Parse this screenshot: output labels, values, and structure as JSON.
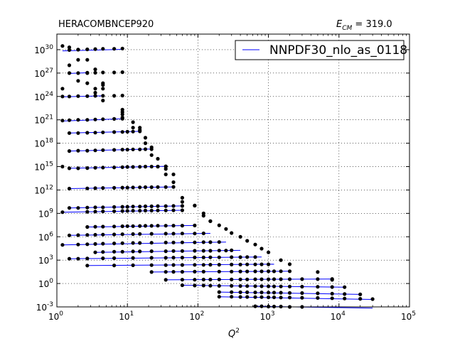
{
  "chart_data": {
    "type": "scatter",
    "title": "HERACOMBNCEP920",
    "annotation": {
      "symbol": "E",
      "subscript": "CM",
      "value": " = 319.0"
    },
    "xlabel": "Q",
    "xlabel_superscript": "2",
    "ylabel": "",
    "xscale": "log",
    "yscale": "log",
    "xlim": [
      1,
      100000
    ],
    "ylim": [
      0.001,
      1e+32
    ],
    "x_ticks": [
      {
        "base": "10",
        "exp": "0",
        "value": 1
      },
      {
        "base": "10",
        "exp": "1",
        "value": 10
      },
      {
        "base": "10",
        "exp": "2",
        "value": 100
      },
      {
        "base": "10",
        "exp": "3",
        "value": 1000
      },
      {
        "base": "10",
        "exp": "4",
        "value": 10000
      },
      {
        "base": "10",
        "exp": "5",
        "value": 100000
      }
    ],
    "y_ticks": [
      {
        "base": "10",
        "exp": "-3",
        "value": 0.001
      },
      {
        "base": "10",
        "exp": "0",
        "value": 1
      },
      {
        "base": "10",
        "exp": "3",
        "value": 1000
      },
      {
        "base": "10",
        "exp": "6",
        "value": 1000000
      },
      {
        "base": "10",
        "exp": "9",
        "value": 1000000000.0
      },
      {
        "base": "10",
        "exp": "12",
        "value": 1000000000000.0
      },
      {
        "base": "10",
        "exp": "15",
        "value": 1000000000000000.0
      },
      {
        "base": "10",
        "exp": "18",
        "value": 1e+18
      },
      {
        "base": "10",
        "exp": "21",
        "value": 1e+21
      },
      {
        "base": "10",
        "exp": "24",
        "value": 1e+24
      },
      {
        "base": "10",
        "exp": "27",
        "value": 1e+27
      },
      {
        "base": "10",
        "exp": "30",
        "value": 1e+30
      }
    ],
    "grid": true,
    "legend": {
      "placement": "top-right",
      "entries": [
        {
          "name": "NNPDF30_nlo_as_0118",
          "color": "#0000ff"
        }
      ]
    },
    "theory_color": "#0000ff",
    "data_color": "#000000",
    "series": [
      {
        "x": [
          1.5,
          2.0,
          2.7,
          3.5,
          4.5,
          6.5,
          8.5
        ],
        "y": [
          9e+29,
          1e+30,
          1.1e+30,
          1.2e+30,
          1.3e+30,
          1.3e+30,
          1.4e+30
        ],
        "theory": [
          [
            1.2,
            7e+29
          ],
          [
            8.5,
            1.1e+30
          ]
        ]
      },
      {
        "x": [
          1.5,
          2.0,
          2.7,
          3.5,
          4.5,
          6.5,
          8.5
        ],
        "y": [
          1e+27,
          1e+27,
          1.1e+27,
          1.1e+27,
          1.2e+27,
          1.2e+27,
          1.3e+27
        ],
        "theory": [
          [
            1.5,
            9e+26
          ],
          [
            2.7,
            1.1e+27
          ]
        ]
      },
      {
        "x": [
          1.2,
          1.5,
          2.0,
          2.7,
          3.5,
          4.5,
          6.5,
          8.5
        ],
        "y": [
          1e+24,
          1e+24,
          1.1e+24,
          1.1e+24,
          1.2e+24,
          1.2e+24,
          1.2e+24,
          1.3e+24
        ],
        "theory": [
          [
            1.2,
            9e+23
          ],
          [
            4.5,
            1.2e+24
          ]
        ]
      },
      {
        "x": [
          1.2,
          1.5,
          2.0,
          2.7,
          3.5,
          4.5,
          6.5,
          8.5
        ],
        "y": [
          8e+20,
          9e+20,
          1e+21,
          1e+21,
          1.1e+21,
          1.2e+21,
          1.3e+21,
          1.4e+21
        ],
        "theory": [
          [
            1.2,
            7e+20
          ],
          [
            8.5,
            1.4e+21
          ]
        ]
      },
      {
        "x": [
          1.5,
          2.0,
          2.7,
          3.5,
          4.5,
          6.5,
          8.5,
          10.0,
          12.0,
          15.0
        ],
        "y": [
          2e+19,
          2e+19,
          2.2e+19,
          2.3e+19,
          2.5e+19,
          2.7e+19,
          2.8e+19,
          3e+19,
          3.1e+19,
          3.3e+19
        ],
        "theory": [
          [
            1.5,
            2e+19
          ],
          [
            15,
            3.3e+19
          ]
        ]
      },
      {
        "x": [
          1.5,
          2.0,
          2.7,
          3.5,
          4.5,
          6.5,
          8.5,
          10.0,
          12.0,
          15.0,
          18.0,
          22.0
        ],
        "y": [
          1e+17,
          1.1e+17,
          1.1e+17,
          1.2e+17,
          1.3e+17,
          1.4e+17,
          1.5e+17,
          1.5e+17,
          1.6e+17,
          1.6e+17,
          1.7e+17,
          1.7e+17
        ],
        "theory": [
          [
            1.5,
            1e+17
          ],
          [
            22,
            1.8e+17
          ]
        ]
      },
      {
        "x": [
          1.5,
          2.0,
          2.7,
          3.5,
          4.5,
          6.5,
          8.5,
          10.0,
          12.0,
          15.0,
          18.0,
          22.0,
          27.0,
          35.0
        ],
        "y": [
          600000000000000.0,
          600000000000000.0,
          650000000000000.0,
          700000000000000.0,
          750000000000000.0,
          800000000000000.0,
          850000000000000.0,
          900000000000000.0,
          900000000000000.0,
          950000000000000.0,
          1000000000000000.0,
          1000000000000000.0,
          1000000000000000.0,
          1100000000000000.0
        ],
        "theory": [
          [
            1.5,
            600000000000000.0
          ],
          [
            35,
            1100000000000000.0
          ]
        ]
      },
      {
        "x": [
          1.5,
          2.7,
          3.5,
          4.5,
          6.5,
          8.5,
          10.0,
          12.0,
          15.0,
          18.0,
          22.0,
          27.0,
          35.0,
          45.0
        ],
        "y": [
          1500000000000.0,
          1600000000000.0,
          1700000000000.0,
          1800000000000.0,
          1900000000000.0,
          2000000000000.0,
          2000000000000.0,
          2100000000000.0,
          2200000000000.0,
          2300000000000.0,
          2300000000000.0,
          2400000000000.0,
          2400000000000.0,
          2500000000000.0
        ],
        "theory": [
          [
            1.5,
            1500000000000.0
          ],
          [
            45,
            2500000000000.0
          ]
        ]
      },
      {
        "x": [
          1.5,
          2.0,
          2.7,
          3.5,
          4.5,
          6.5,
          8.5,
          10.0,
          12.0,
          15.0,
          18.0,
          22.0,
          27.0,
          35.0,
          45.0,
          60.0
        ],
        "y": [
          5000000000.0,
          5000000000.0,
          5500000000.0,
          6000000000.0,
          6000000000.0,
          6500000000.0,
          7000000000.0,
          7000000000.0,
          7500000000.0,
          7500000000.0,
          8000000000.0,
          8000000000.0,
          8500000000.0,
          8500000000.0,
          9000000000.0,
          9000000000.0
        ],
        "theory": [
          [
            1.5,
            5000000000.0
          ],
          [
            60,
            9000000000.0
          ]
        ]
      },
      {
        "x": [
          1.2,
          2.7,
          3.5,
          4.5,
          6.5,
          8.5,
          10.0,
          12.0,
          15.0,
          18.0,
          22.0,
          27.0,
          35.0,
          45.0,
          60.0
        ],
        "y": [
          1400000000.0,
          1600000000.0,
          1700000000.0,
          1800000000.0,
          1900000000.0,
          2000000000.0,
          2100000000.0,
          2200000000.0,
          2200000000.0,
          2300000000.0,
          2300000000.0,
          2400000000.0,
          2400000000.0,
          2500000000.0,
          2500000000.0
        ],
        "theory": [
          [
            1.2,
            1400000000.0
          ],
          [
            60,
            2500000000.0
          ]
        ]
      },
      {
        "x": [
          2.7,
          3.5,
          4.5,
          6.5,
          8.5,
          10.0,
          12.0,
          15.0,
          18.0,
          22.0,
          27.0,
          35.0,
          45.0,
          60.0,
          90.0
        ],
        "y": [
          18000000.0,
          19000000.0,
          20000000.0,
          21000000.0,
          22000000.0,
          23000000.0,
          23000000.0,
          24000000.0,
          25000000.0,
          25000000.0,
          26000000.0,
          26000000.0,
          27000000.0,
          27000000.0,
          28000000.0
        ],
        "theory": [
          [
            2.7,
            18000000.0
          ],
          [
            90,
            28000000.0
          ]
        ]
      },
      {
        "x": [
          1.5,
          2.0,
          2.7,
          3.5,
          4.5,
          6.5,
          8.5,
          12.0,
          15.0,
          22.0,
          35.0,
          45.0,
          60.0,
          90.0,
          120.0
        ],
        "y": [
          1500000.0,
          1600000.0,
          1700000.0,
          1800000.0,
          1900000.0,
          2000000.0,
          2100000.0,
          2200000.0,
          2300000.0,
          2400000.0,
          2500000.0,
          2500000.0,
          2600000.0,
          2600000.0,
          2700000.0
        ],
        "theory": [
          [
            1.5,
            1500000.0
          ],
          [
            150,
            2700000.0
          ]
        ]
      },
      {
        "x": [
          1.2,
          2.0,
          2.7,
          3.5,
          4.5,
          6.5,
          8.5,
          12.0,
          15.0,
          22.0,
          35.0,
          45.0,
          60.0,
          90.0,
          120.0,
          150.0,
          200.0
        ],
        "y": [
          90000.0,
          100000.0,
          110000.0,
          120000.0,
          130000.0,
          140000.0,
          150000.0,
          160000.0,
          160000.0,
          170000.0,
          180000.0,
          180000.0,
          190000.0,
          190000.0,
          200000.0,
          200000.0,
          210000.0
        ],
        "theory": [
          [
            1.2,
            90000.0
          ],
          [
            250,
            210000.0
          ]
        ]
      },
      {
        "x": [
          3.5,
          4.5,
          6.5,
          8.5,
          12.0,
          15.0,
          22.0,
          35.0,
          45.0,
          60.0,
          90.0,
          120.0,
          150.0,
          200.0,
          250.0,
          300.0
        ],
        "y": [
          10000.0,
          11000.0,
          12000.0,
          12000.0,
          13000.0,
          13000.0,
          14000.0,
          14000.0,
          15000.0,
          15000.0,
          16000.0,
          16000.0,
          16000.0,
          17000.0,
          17000.0,
          18000.0
        ],
        "theory": [
          [
            3.5,
            10000.0
          ],
          [
            400,
            18000.0
          ]
        ]
      },
      {
        "x": [
          1.5,
          2.0,
          2.7,
          4.5,
          6.5,
          12.0,
          22.0,
          35.0,
          45.0,
          60.0,
          90.0,
          120.0,
          150.0,
          200.0,
          300.0,
          400.0,
          500.0,
          650.0
        ],
        "y": [
          1500.0,
          1500.0,
          1600.0,
          1700.0,
          1800.0,
          1900.0,
          2000.0,
          2000.0,
          2100.0,
          2100.0,
          2200.0,
          2200.0,
          2300.0,
          2300.0,
          2400.0,
          2400.0,
          2500.0,
          2500.0
        ],
        "theory": [
          [
            1.5,
            1500.0
          ],
          [
            800,
            2500.0
          ]
        ]
      },
      {
        "x": [
          2.7,
          6.5,
          12.0,
          22.0,
          35.0,
          45.0,
          60.0,
          90.0,
          120.0,
          150.0,
          200.0,
          300.0,
          400.0,
          500.0,
          650.0,
          800.0,
          1000.0
        ],
        "y": [
          200.0,
          210.0,
          220.0,
          230.0,
          230.0,
          240.0,
          240.0,
          250.0,
          250.0,
          260.0,
          260.0,
          270.0,
          270.0,
          280.0,
          280.0,
          290.0,
          290.0
        ],
        "theory": [
          [
            2.7,
            200.0
          ],
          [
            1200,
            300.0
          ]
        ]
      },
      {
        "x": [
          22.0,
          35.0,
          45.0,
          60.0,
          90.0,
          120.0,
          200.0,
          300.0,
          400.0,
          500.0,
          650.0,
          800.0,
          1000.0,
          1200.0,
          1500.0,
          2000.0
        ],
        "y": [
          30,
          31,
          32,
          32,
          33,
          33,
          34,
          34,
          35,
          35,
          36,
          36,
          37,
          37,
          38,
          38
        ],
        "theory": [
          [
            22,
            30
          ],
          [
            2000,
            38
          ]
        ]
      },
      {
        "x": [
          35.0,
          60.0,
          90.0,
          120.0,
          150.0,
          200.0,
          300.0,
          400.0,
          500.0,
          650.0,
          800.0,
          1000.0,
          1200.0,
          1500.0,
          2000.0,
          3000.0,
          5000.0,
          8000.0
        ],
        "y": [
          3,
          3.1,
          3.1,
          3.2,
          3.2,
          3.3,
          3.3,
          3.4,
          3.4,
          3.5,
          3.5,
          3.5,
          3.6,
          3.6,
          3.6,
          3.7,
          3.7,
          3.8
        ],
        "theory": [
          [
            35,
            3
          ],
          [
            8000,
            3.8
          ]
        ]
      },
      {
        "x": [
          60.0,
          90.0,
          120.0,
          150.0,
          200.0,
          300.0,
          400.0,
          500.0,
          650.0,
          800.0,
          1000.0,
          1200.0,
          1500.0,
          2000.0,
          3000.0,
          5000.0,
          8000.0,
          12000.0
        ],
        "y": [
          0.6,
          0.55,
          0.55,
          0.52,
          0.5,
          0.5,
          0.48,
          0.47,
          0.46,
          0.45,
          0.44,
          0.43,
          0.42,
          0.41,
          0.4,
          0.38,
          0.36,
          0.34
        ],
        "theory": [
          [
            60,
            0.6
          ],
          [
            12000,
            0.34
          ]
        ]
      },
      {
        "x": [
          200.0,
          300.0,
          400.0,
          500.0,
          650.0,
          800.0,
          1000.0,
          1200.0,
          1500.0,
          2000.0,
          3000.0,
          5000.0,
          8000.0,
          12000.0,
          20000.0
        ],
        "y": [
          0.08,
          0.078,
          0.076,
          0.075,
          0.073,
          0.072,
          0.07,
          0.068,
          0.066,
          0.063,
          0.06,
          0.055,
          0.05,
          0.045,
          0.04
        ],
        "theory": [
          [
            200,
            0.08
          ],
          [
            20000,
            0.04
          ]
        ]
      },
      {
        "x": [
          200.0,
          300.0,
          400.0,
          500.0,
          650.0,
          800.0,
          1000.0,
          1200.0,
          1500.0,
          2000.0,
          3000.0,
          5000.0,
          8000.0,
          12000.0,
          20000.0,
          30000.0
        ],
        "y": [
          0.02,
          0.02,
          0.019,
          0.019,
          0.018,
          0.018,
          0.017,
          0.017,
          0.016,
          0.016,
          0.015,
          0.014,
          0.013,
          0.012,
          0.011,
          0.01
        ],
        "theory": [
          [
            200,
            0.02
          ],
          [
            30000,
            0.009
          ]
        ]
      },
      {
        "x": [
          650.0,
          800.0,
          1000.0,
          1200.0,
          1500.0,
          2000.0,
          3000.0,
          5000.0,
          8000.0,
          12000.0,
          20000.0,
          30000.0
        ],
        "y": [
          0.0012,
          0.0012,
          0.0011,
          0.0011,
          0.0011,
          0.001,
          0.001,
          0.0009,
          0.0009,
          0.0008,
          0.0008,
          0.0007
        ],
        "theory": [
          [
            650,
            0.0012
          ],
          [
            30000,
            0.0007
          ]
        ]
      }
    ],
    "extra_points": {
      "x": [
        1.2,
        1.2,
        1.2,
        1.5,
        1.5,
        2.0,
        2.0,
        2.0,
        2.7,
        2.7,
        2.7,
        3.5,
        3.5,
        3.5,
        4.5,
        4.5,
        4.5,
        4.5,
        8.5,
        8.5,
        8.5,
        8.5,
        12.0,
        12.0,
        15.0,
        15.0,
        18.0,
        18.0,
        22.0,
        22.0,
        27.0,
        27.0,
        35.0,
        35.0,
        35.0,
        45.0,
        45.0,
        60.0,
        60.0,
        90.0,
        90.0,
        120.0,
        120.0,
        150.0,
        150.0,
        200.0,
        250.0,
        300.0,
        400.0,
        500.0,
        650.0,
        800.0,
        1000.0,
        1500.0,
        2000.0,
        5000.0,
        8000.0
      ],
      "y": [
        3e+30,
        1e+25,
        1000000000000000.0,
        2e+30,
        1e+28,
        1e+30,
        5e+28,
        1e+26,
        5e+28,
        1e+27,
        5e+25,
        3e+27,
        1e+25,
        3e+24,
        5e+25,
        3e+25,
        1e+25,
        3e+23,
        2e+22,
        1e+22,
        5e+21,
        2e+21,
        5e+20,
        1e+20,
        1e+20,
        5e+19,
        5e+18,
        1e+18,
        3e+16,
        3e+17,
        1e+16,
        1000000000000000.0,
        500000000000000.0,
        100000000000000.0,
        1000000000000000.0,
        100000000000000.0,
        10000000000000.0,
        100000000000.0,
        30000000000.0,
        10000000000.0,
        10000000000.0,
        1000000000.0,
        500000000.0,
        100000000.0,
        100000000.0,
        30000000.0,
        10000000.0,
        3000000.0,
        1000000.0,
        300000.0,
        100000.0,
        30000.0,
        10000.0,
        1000.0,
        300.0,
        30,
        3
      ]
    }
  }
}
